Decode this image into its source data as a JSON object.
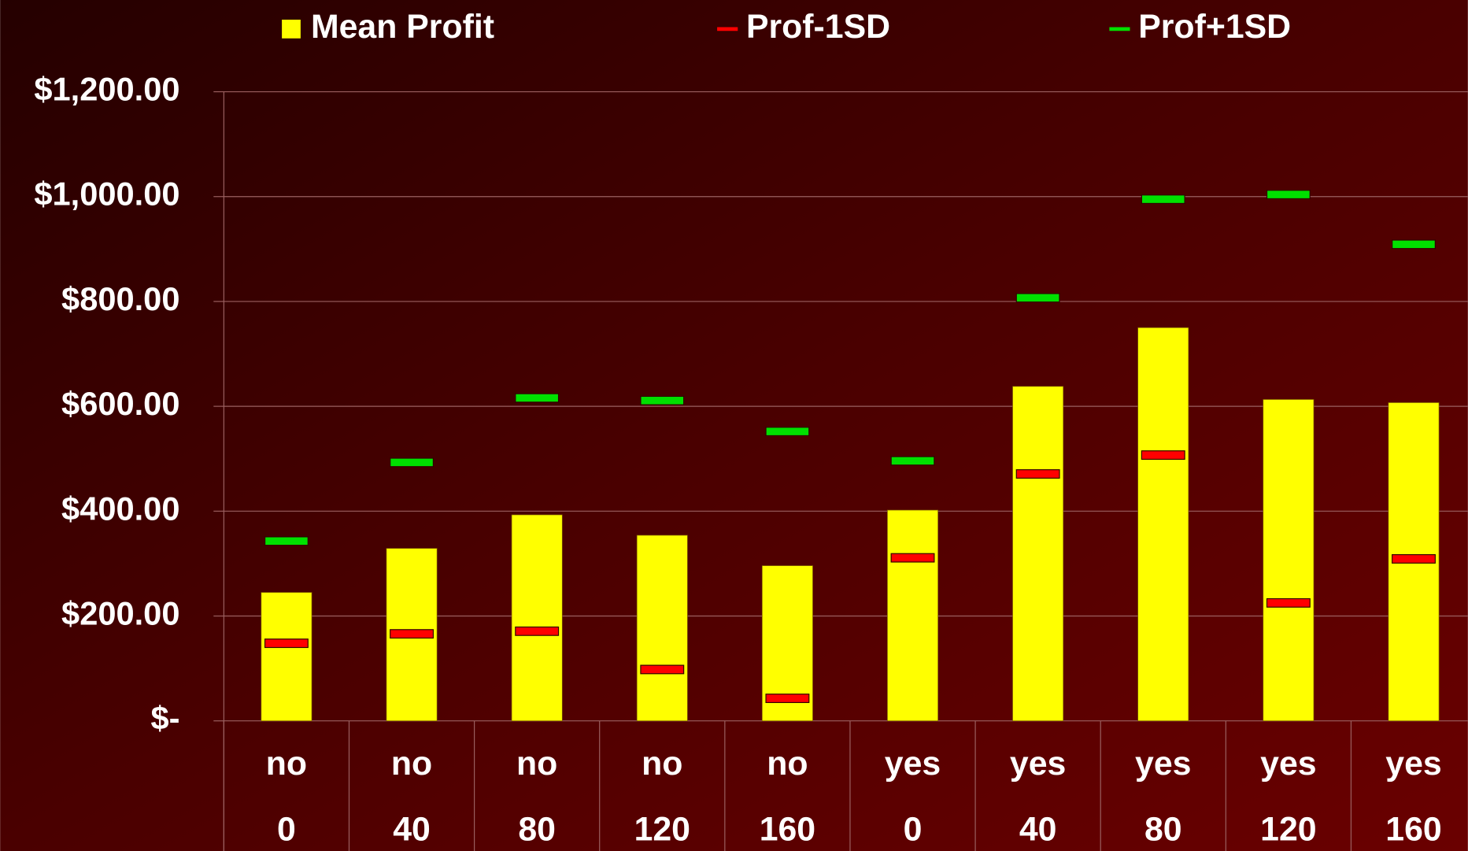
{
  "chart_data": {
    "type": "bar",
    "categories": [
      [
        "no",
        "0"
      ],
      [
        "no",
        "40"
      ],
      [
        "no",
        "80"
      ],
      [
        "no",
        "120"
      ],
      [
        "no",
        "160"
      ],
      [
        "yes",
        "0"
      ],
      [
        "yes",
        "40"
      ],
      [
        "yes",
        "80"
      ],
      [
        "yes",
        "120"
      ],
      [
        "yes",
        "160"
      ]
    ],
    "series": [
      {
        "name": "Mean Profit",
        "type": "bar",
        "color": "#ffff00",
        "values": [
          245,
          329,
          393,
          354,
          296,
          402,
          638,
          750,
          613,
          607
        ]
      },
      {
        "name": "Prof-1SD",
        "type": "marker",
        "color": "#ff0000",
        "values": [
          148,
          166,
          171,
          98,
          43,
          311,
          471,
          507,
          225,
          309
        ]
      },
      {
        "name": "Prof+1SD",
        "type": "marker",
        "color": "#00e000",
        "values": [
          343,
          493,
          616,
          611,
          552,
          496,
          807,
          995,
          1004,
          909
        ]
      }
    ],
    "ylim": [
      0,
      1200
    ],
    "yticks": [
      {
        "value": 0,
        "label": "$-"
      },
      {
        "value": 200,
        "label": "$200.00"
      },
      {
        "value": 400,
        "label": "$400.00"
      },
      {
        "value": 600,
        "label": "$600.00"
      },
      {
        "value": 800,
        "label": "$800.00"
      },
      {
        "value": 1000,
        "label": "$1,000.00"
      },
      {
        "value": 1200,
        "label": "$1,200.00"
      }
    ],
    "grid": true,
    "legend": "top"
  }
}
